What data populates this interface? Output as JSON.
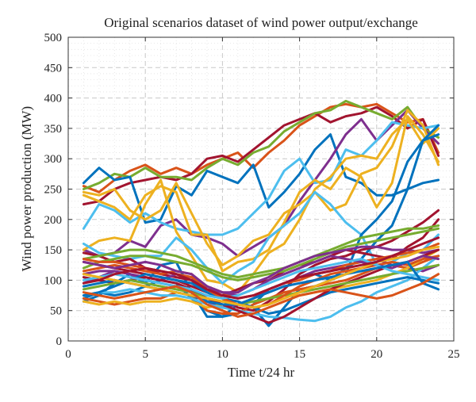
{
  "chart_data": {
    "type": "line",
    "title": "Original scenarios dataset of wind power output/exchange",
    "xlabel": "Time t/24 hr",
    "ylabel": "Wind power production (MW)",
    "xlim": [
      0,
      25
    ],
    "ylim": [
      0,
      500
    ],
    "xticks": [
      0,
      5,
      10,
      15,
      20,
      25
    ],
    "yticks": [
      0,
      50,
      100,
      150,
      200,
      250,
      300,
      350,
      400,
      450,
      500
    ],
    "grid": true,
    "x": [
      1,
      2,
      3,
      4,
      5,
      6,
      7,
      8,
      9,
      10,
      11,
      12,
      13,
      14,
      15,
      16,
      17,
      18,
      19,
      20,
      21,
      22,
      23,
      24
    ],
    "series": [
      {
        "color": "#d95319",
        "values": [
          255,
          245,
          265,
          280,
          290,
          275,
          285,
          275,
          290,
          300,
          310,
          285,
          310,
          330,
          355,
          370,
          385,
          390,
          385,
          390,
          375,
          360,
          365,
          310
        ]
      },
      {
        "color": "#a2142f",
        "values": [
          225,
          230,
          250,
          260,
          265,
          270,
          265,
          275,
          300,
          305,
          295,
          315,
          335,
          355,
          365,
          375,
          360,
          370,
          375,
          385,
          370,
          350,
          365,
          305
        ]
      },
      {
        "color": "#77ac30",
        "values": [
          250,
          260,
          275,
          270,
          285,
          270,
          270,
          265,
          285,
          300,
          290,
          310,
          320,
          345,
          360,
          375,
          380,
          395,
          385,
          375,
          365,
          385,
          350,
          335
        ]
      },
      {
        "color": "#0072bd",
        "values": [
          260,
          285,
          265,
          270,
          195,
          200,
          255,
          240,
          280,
          270,
          260,
          290,
          220,
          245,
          275,
          315,
          340,
          270,
          260,
          240,
          240,
          250,
          260,
          265
        ]
      },
      {
        "color": "#7e2f8e",
        "values": [
          150,
          140,
          145,
          165,
          155,
          190,
          200,
          175,
          170,
          160,
          140,
          155,
          170,
          190,
          230,
          265,
          300,
          340,
          365,
          330,
          355,
          380,
          350,
          325
        ]
      },
      {
        "color": "#4dbeee",
        "values": [
          185,
          225,
          215,
          195,
          210,
          195,
          185,
          180,
          175,
          175,
          185,
          210,
          235,
          280,
          300,
          260,
          265,
          315,
          305,
          330,
          360,
          355,
          350,
          355
        ]
      },
      {
        "color": "#edb120",
        "values": [
          240,
          230,
          220,
          200,
          240,
          255,
          245,
          175,
          175,
          115,
          130,
          135,
          150,
          195,
          245,
          265,
          250,
          285,
          270,
          220,
          260,
          370,
          340,
          295
        ]
      },
      {
        "color": "#edb120",
        "values": [
          150,
          165,
          170,
          165,
          225,
          265,
          180,
          140,
          100,
          95,
          80,
          110,
          145,
          160,
          200,
          250,
          270,
          300,
          305,
          300,
          340,
          365,
          325,
          350
        ]
      },
      {
        "color": "#edb120",
        "values": [
          245,
          240,
          250,
          215,
          200,
          215,
          260,
          210,
          160,
          125,
          140,
          165,
          175,
          210,
          225,
          245,
          215,
          225,
          275,
          285,
          320,
          380,
          355,
          290
        ]
      },
      {
        "color": "#4dbeee",
        "values": [
          160,
          145,
          140,
          135,
          140,
          140,
          170,
          150,
          120,
          95,
          115,
          130,
          170,
          190,
          210,
          245,
          225,
          195,
          175,
          125,
          130,
          145,
          150,
          175
        ]
      },
      {
        "color": "#0072bd",
        "values": [
          70,
          80,
          75,
          80,
          90,
          100,
          95,
          70,
          50,
          40,
          45,
          60,
          85,
          95,
          105,
          110,
          100,
          120,
          135,
          165,
          190,
          250,
          330,
          355
        ]
      },
      {
        "color": "#0072bd",
        "values": [
          65,
          75,
          95,
          110,
          95,
          125,
          130,
          80,
          40,
          40,
          60,
          55,
          25,
          55,
          85,
          90,
          100,
          110,
          175,
          200,
          230,
          295,
          330,
          340
        ]
      },
      {
        "color": "#a2142f",
        "values": [
          145,
          140,
          130,
          135,
          120,
          110,
          105,
          100,
          80,
          70,
          55,
          50,
          65,
          85,
          110,
          125,
          135,
          140,
          150,
          155,
          165,
          180,
          195,
          215
        ]
      },
      {
        "color": "#a2142f",
        "values": [
          130,
          125,
          120,
          115,
          110,
          105,
          100,
          90,
          80,
          75,
          85,
          95,
          100,
          115,
          125,
          130,
          140,
          150,
          145,
          140,
          135,
          155,
          170,
          200
        ]
      },
      {
        "color": "#77ac30",
        "values": [
          135,
          140,
          145,
          150,
          150,
          145,
          140,
          130,
          120,
          110,
          105,
          110,
          115,
          120,
          130,
          140,
          150,
          160,
          170,
          175,
          180,
          185,
          185,
          190
        ]
      },
      {
        "color": "#77ac30",
        "values": [
          120,
          130,
          135,
          140,
          140,
          135,
          130,
          125,
          115,
          105,
          100,
          105,
          110,
          115,
          125,
          135,
          145,
          155,
          160,
          165,
          170,
          175,
          180,
          185
        ]
      },
      {
        "color": "#7e2f8e",
        "values": [
          110,
          115,
          115,
          110,
          105,
          100,
          110,
          105,
          85,
          80,
          80,
          95,
          105,
          120,
          130,
          140,
          145,
          150,
          155,
          155,
          150,
          150,
          145,
          150
        ]
      },
      {
        "color": "#7e2f8e",
        "values": [
          95,
          105,
          115,
          110,
          100,
          95,
          90,
          80,
          65,
          55,
          60,
          70,
          85,
          95,
          105,
          115,
          120,
          125,
          130,
          135,
          125,
          120,
          115,
          125
        ]
      },
      {
        "color": "#d95319",
        "values": [
          135,
          130,
          130,
          125,
          120,
          115,
          110,
          105,
          90,
          80,
          70,
          75,
          85,
          95,
          100,
          110,
          115,
          125,
          130,
          135,
          140,
          145,
          150,
          160
        ]
      },
      {
        "color": "#d95319",
        "values": [
          70,
          65,
          60,
          65,
          70,
          70,
          80,
          75,
          50,
          45,
          45,
          60,
          70,
          80,
          85,
          90,
          95,
          100,
          110,
          120,
          125,
          120,
          130,
          140
        ]
      },
      {
        "color": "#edb120",
        "values": [
          65,
          60,
          65,
          60,
          65,
          65,
          70,
          65,
          55,
          60,
          60,
          65,
          70,
          75,
          75,
          80,
          85,
          90,
          95,
          100,
          110,
          120,
          135,
          150
        ]
      },
      {
        "color": "#4dbeee",
        "values": [
          75,
          80,
          80,
          85,
          80,
          75,
          75,
          70,
          60,
          55,
          50,
          45,
          40,
          38,
          35,
          33,
          40,
          55,
          65,
          80,
          90,
          100,
          120,
          140
        ]
      },
      {
        "color": "#0072bd",
        "values": [
          75,
          80,
          90,
          100,
          110,
          105,
          100,
          95,
          80,
          70,
          65,
          55,
          45,
          50,
          60,
          70,
          80,
          85,
          90,
          95,
          100,
          105,
          100,
          95
        ]
      },
      {
        "color": "#a2142f",
        "values": [
          105,
          100,
          95,
          100,
          105,
          100,
          95,
          85,
          70,
          60,
          50,
          40,
          30,
          40,
          55,
          70,
          85,
          95,
          105,
          115,
          125,
          130,
          140,
          150
        ]
      },
      {
        "color": "#77ac30",
        "values": [
          85,
          90,
          95,
          100,
          95,
          90,
          85,
          80,
          70,
          65,
          60,
          65,
          70,
          75,
          80,
          85,
          90,
          95,
          100,
          105,
          110,
          115,
          120,
          125
        ]
      },
      {
        "color": "#d95319",
        "values": [
          115,
          120,
          125,
          120,
          115,
          110,
          115,
          110,
          85,
          70,
          60,
          55,
          60,
          75,
          90,
          100,
          110,
          115,
          120,
          125,
          130,
          125,
          135,
          140
        ]
      },
      {
        "color": "#7e2f8e",
        "values": [
          130,
          125,
          120,
          125,
          130,
          125,
          115,
          110,
          90,
          80,
          75,
          85,
          100,
          110,
          120,
          130,
          140,
          135,
          130,
          125,
          120,
          130,
          140,
          135
        ]
      },
      {
        "color": "#4dbeee",
        "values": [
          100,
          105,
          110,
          105,
          100,
          95,
          90,
          85,
          75,
          70,
          75,
          85,
          95,
          105,
          115,
          120,
          125,
          130,
          135,
          125,
          115,
          110,
          105,
          100
        ]
      },
      {
        "color": "#0072bd",
        "values": [
          90,
          95,
          100,
          95,
          90,
          85,
          80,
          75,
          65,
          60,
          60,
          70,
          80,
          90,
          95,
          100,
          105,
          110,
          115,
          120,
          125,
          130,
          95,
          85
        ]
      },
      {
        "color": "#edb120",
        "values": [
          110,
          105,
          100,
          95,
          90,
          85,
          80,
          75,
          70,
          65,
          60,
          55,
          60,
          70,
          80,
          90,
          100,
          110,
          120,
          130,
          135,
          140,
          150,
          155
        ]
      },
      {
        "color": "#a2142f",
        "values": [
          95,
          100,
          110,
          115,
          120,
          115,
          110,
          100,
          85,
          75,
          70,
          75,
          85,
          95,
          105,
          110,
          115,
          120,
          125,
          130,
          140,
          150,
          160,
          170
        ]
      },
      {
        "color": "#d95319",
        "values": [
          80,
          75,
          70,
          75,
          80,
          85,
          90,
          80,
          60,
          50,
          40,
          45,
          55,
          65,
          75,
          80,
          85,
          80,
          75,
          70,
          75,
          85,
          95,
          110
        ]
      }
    ]
  }
}
